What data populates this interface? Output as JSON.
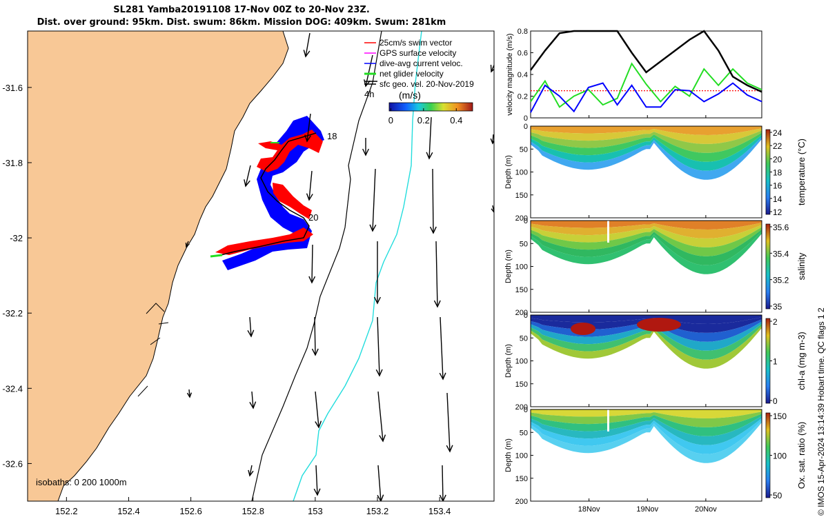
{
  "figure": {
    "title_line1": "SL281 Yamba20191108 17-Nov 00Z to 20-Nov 23Z.",
    "title_line2": "Dist. over ground: 95km. Dist. swum: 86km. Mission DOG: 409km. Swum: 281km",
    "credit": "© IMOS 15-Apr-2024 13:14:39 Hobart time. QC flags 1  2"
  },
  "colors": {
    "land": "#f8c896",
    "track_blue": "#0000ff",
    "swim_red": "#ff0000",
    "glider_green": "#22dd22",
    "isobath_200": "#000000",
    "isobath_1000": "#22dddd"
  },
  "map": {
    "x_ticks": [
      "152.2",
      "152.4",
      "152.6",
      "152.8",
      "153",
      "153.2",
      "153.4"
    ],
    "x_tick_values": [
      152.2,
      152.4,
      152.6,
      152.8,
      153.0,
      153.2,
      153.4
    ],
    "y_ticks": [
      "-31.6",
      "-31.8",
      "-32",
      "-32.2",
      "-32.4",
      "-32.6"
    ],
    "y_tick_values": [
      -31.6,
      -31.8,
      -32.0,
      -32.2,
      -32.4,
      -32.6
    ],
    "xlim": [
      152.075,
      153.575
    ],
    "ylim": [
      -32.7,
      -31.45
    ],
    "day_labels": [
      "18",
      "20"
    ],
    "time_scale_label": "4h",
    "isobaths_label": "isobaths: 0   200  1000m",
    "legend": [
      {
        "label": "25cm/s swim vector",
        "color": "#ff0000"
      },
      {
        "label": "GPS surface velocity",
        "color": "#ff00ff"
      },
      {
        "label": "dive-avg current veloc.",
        "color": "#0000ff"
      },
      {
        "label": "net glider velocity",
        "color": "#22dd22"
      },
      {
        "label": "sfc geo. vel. 20-Nov-2019",
        "color": "#000000"
      }
    ],
    "colorbar": {
      "title": "(m/s)",
      "ticks": [
        "0",
        "0.2",
        "0.4"
      ],
      "tick_values": [
        0,
        0.2,
        0.4
      ],
      "range": [
        -0.01,
        0.5
      ]
    }
  },
  "timeseries": {
    "x_ticks": [
      "18Nov",
      "19Nov",
      "20Nov"
    ],
    "velocity_ylabel": "velocity magnitude (m/s)",
    "velocity_yticks": [
      "0",
      "0.2",
      "0.4",
      "0.6",
      "0.8"
    ],
    "depth_ylabel": "Depth (m)",
    "depth_yticks": [
      "0",
      "50",
      "100",
      "150",
      "200"
    ]
  },
  "panels": [
    {
      "cb_label": "temperature (°C)",
      "cb_ticks": [
        "24",
        "22",
        "20",
        "18",
        "16",
        "14",
        "12"
      ]
    },
    {
      "cb_label": "salinity",
      "cb_ticks": [
        "35.6",
        "35.4",
        "35.2",
        "35"
      ]
    },
    {
      "cb_label": "chl-a (mg m-3)",
      "cb_ticks": [
        "2",
        "1",
        "0"
      ]
    },
    {
      "cb_label": "Ox. sat. ratio (%)",
      "cb_ticks": [
        "150",
        "100",
        "50"
      ]
    }
  ],
  "chart_data": [
    {
      "type": "line",
      "xlabel": "",
      "ylabel": "velocity magnitude (m/s)",
      "ylim": [
        0,
        0.8
      ],
      "x": [
        "17-Nov 00Z",
        "17-Nov 06Z",
        "17-Nov 12Z",
        "17-Nov 18Z",
        "18-Nov 00Z",
        "18-Nov 06Z",
        "18-Nov 12Z",
        "18-Nov 18Z",
        "19-Nov 00Z",
        "19-Nov 06Z",
        "19-Nov 12Z",
        "19-Nov 18Z",
        "20-Nov 00Z",
        "20-Nov 06Z",
        "20-Nov 12Z",
        "20-Nov 18Z",
        "20-Nov 23Z"
      ],
      "series": [
        {
          "name": "25cm/s swim vector",
          "values": [
            0.25,
            0.25,
            0.25,
            0.25,
            0.25,
            0.25,
            0.25,
            0.25,
            0.25,
            0.25,
            0.25,
            0.25,
            0.25,
            0.25,
            0.25,
            0.25,
            0.25
          ]
        },
        {
          "name": "net glider velocity",
          "values": [
            0.15,
            0.34,
            0.1,
            0.2,
            0.26,
            0.12,
            0.18,
            0.5,
            0.31,
            0.15,
            0.29,
            0.2,
            0.45,
            0.3,
            0.45,
            0.32,
            0.26
          ]
        },
        {
          "name": "dive-avg current veloc.",
          "values": [
            0.05,
            0.3,
            0.2,
            0.06,
            0.28,
            0.32,
            0.12,
            0.3,
            0.1,
            0.1,
            0.26,
            0.25,
            0.15,
            0.22,
            0.32,
            0.21,
            0.15
          ]
        },
        {
          "name": "GPS surface velocity",
          "values": [
            0.44,
            0.62,
            0.78,
            0.82,
            0.8,
            0.82,
            0.8,
            0.6,
            0.42,
            0.52,
            0.62,
            0.72,
            0.82,
            0.62,
            0.38,
            0.3,
            0.24
          ]
        }
      ]
    },
    {
      "type": "heatmap",
      "ylabel": "Depth (m)",
      "ylim": [
        200,
        0
      ],
      "x": [
        "17-Nov",
        "18-Nov",
        "19-Nov",
        "20-Nov"
      ],
      "colorbar_label": "temperature (°C)",
      "clim": [
        12,
        24.5
      ]
    },
    {
      "type": "heatmap",
      "ylabel": "Depth (m)",
      "ylim": [
        200,
        0
      ],
      "x": [
        "17-Nov",
        "18-Nov",
        "19-Nov",
        "20-Nov"
      ],
      "colorbar_label": "salinity",
      "clim": [
        34.9,
        35.75
      ]
    },
    {
      "type": "heatmap",
      "ylabel": "Depth (m)",
      "ylim": [
        200,
        0
      ],
      "x": [
        "17-Nov",
        "18-Nov",
        "19-Nov",
        "20-Nov"
      ],
      "colorbar_label": "chl-a (mg m-3)",
      "clim": [
        0,
        2
      ]
    },
    {
      "type": "heatmap",
      "ylabel": "Depth (m)",
      "ylim": [
        200,
        0
      ],
      "x": [
        "17-Nov",
        "18-Nov",
        "19-Nov",
        "20-Nov"
      ],
      "colorbar_label": "Ox. sat. ratio (%)",
      "clim": [
        20,
        175
      ]
    }
  ]
}
